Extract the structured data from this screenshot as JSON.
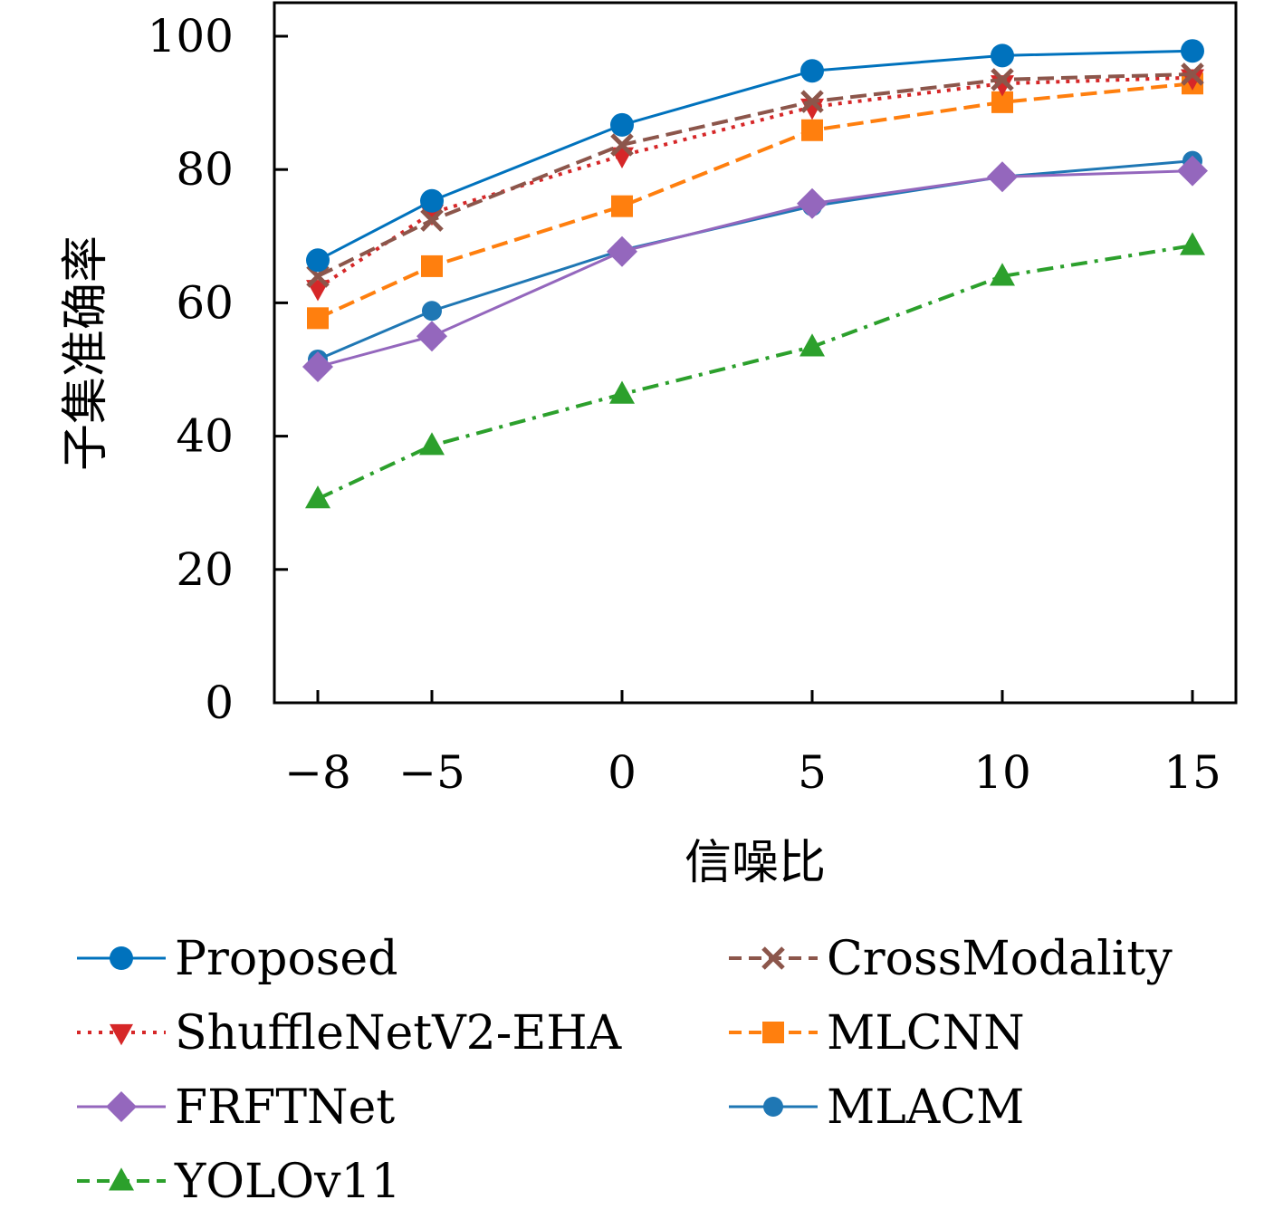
{
  "chart_data": {
    "type": "line",
    "title": "",
    "xlabel": "信噪比",
    "ylabel": "子集准确率",
    "x": [
      -8,
      -5,
      0,
      5,
      10,
      15
    ],
    "x_ticks": [
      "−8",
      "−5",
      "0",
      "5",
      "10",
      "15"
    ],
    "y_ticks": [
      "0",
      "20",
      "40",
      "60",
      "80",
      "100"
    ],
    "xlim": [
      -9.2,
      16.2
    ],
    "ylim": [
      0,
      105
    ],
    "grid": false,
    "legend_position": "bottom",
    "series": [
      {
        "name": "Proposed",
        "color": "#0072BD",
        "marker": "circle",
        "linestyle": "solid",
        "values": [
          66.4,
          75.3,
          86.7,
          94.8,
          97.1,
          97.8
        ]
      },
      {
        "name": "CrossModality",
        "color": "#8C564B",
        "marker": "x",
        "linestyle": "dashed",
        "values": [
          64.0,
          72.4,
          83.7,
          90.2,
          93.5,
          94.3
        ]
      },
      {
        "name": "ShuffleNetV2-EHA",
        "color": "#D62728",
        "marker": "triangle-down",
        "linestyle": "dotted",
        "values": [
          62.2,
          73.5,
          82.1,
          89.4,
          92.9,
          93.8
        ]
      },
      {
        "name": "MLCNN",
        "color": "#FF7F0E",
        "marker": "square",
        "linestyle": "dashed",
        "values": [
          57.7,
          65.5,
          74.5,
          85.9,
          90.1,
          92.9
        ]
      },
      {
        "name": "FRFTNet",
        "color": "#9467BD",
        "marker": "diamond",
        "linestyle": "solid",
        "values": [
          50.4,
          55.0,
          67.7,
          74.9,
          78.9,
          79.8
        ]
      },
      {
        "name": "MLACM",
        "color": "#1F77B4",
        "marker": "circle-small",
        "linestyle": "solid",
        "values": [
          51.5,
          58.8,
          67.9,
          74.5,
          78.9,
          81.3
        ]
      },
      {
        "name": "YOLOv11",
        "color": "#2CA02C",
        "marker": "triangle-up",
        "linestyle": "dashdot",
        "values": [
          30.6,
          38.6,
          46.3,
          53.4,
          64.0,
          68.6
        ]
      }
    ],
    "legend_order": [
      "Proposed",
      "CrossModality",
      "ShuffleNetV2-EHA",
      "MLCNN",
      "FRFTNet",
      "MLACM",
      "YOLOv11"
    ]
  }
}
